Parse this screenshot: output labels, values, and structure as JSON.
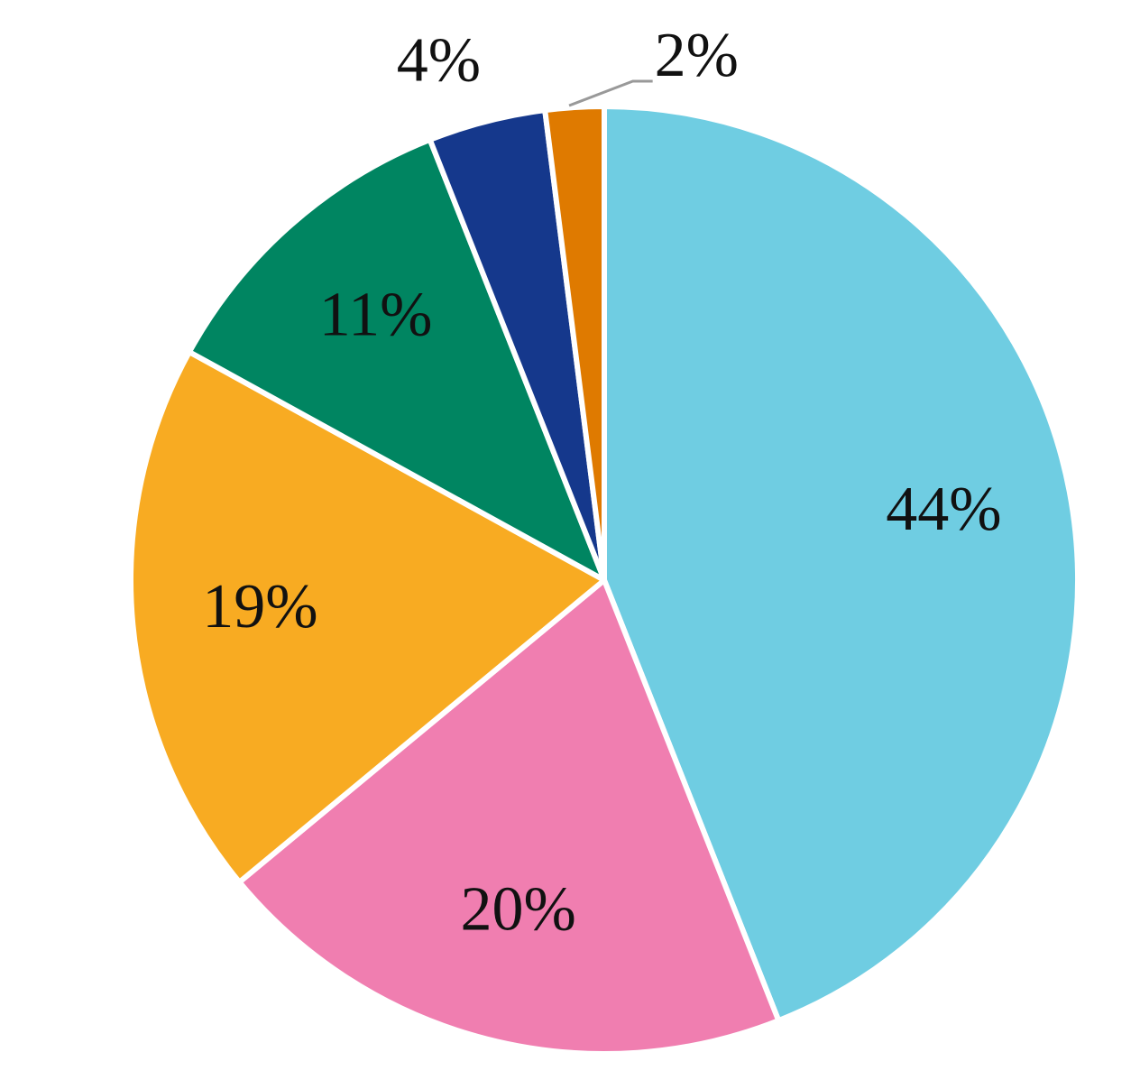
{
  "chart_data": {
    "type": "pie",
    "values": [
      44,
      20,
      19,
      11,
      4,
      2
    ],
    "value_labels": [
      "44%",
      "20%",
      "19%",
      "11%",
      "4%",
      "2%"
    ],
    "colors": [
      "#6fcde2",
      "#f07eb0",
      "#f8ab22",
      "#008561",
      "#15388c",
      "#df7a00"
    ]
  }
}
